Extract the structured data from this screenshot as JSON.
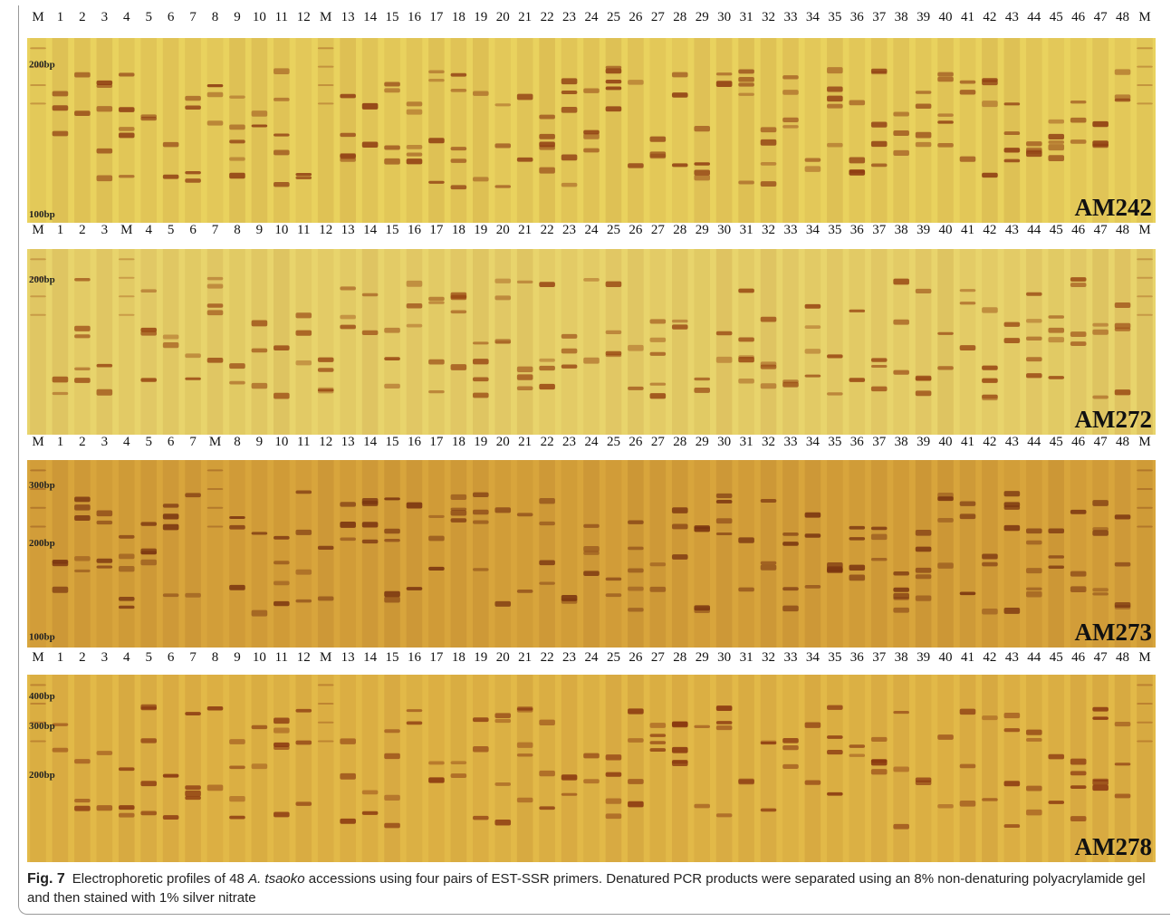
{
  "panels": [
    {
      "name": "AM242",
      "markers": [
        "200bp",
        "100bp"
      ],
      "lanes": [
        "M",
        "1",
        "2",
        "3",
        "4",
        "5",
        "6",
        "7",
        "8",
        "9",
        "10",
        "11",
        "12",
        "M",
        "13",
        "14",
        "15",
        "16",
        "17",
        "18",
        "19",
        "20",
        "21",
        "22",
        "23",
        "24",
        "25",
        "26",
        "27",
        "28",
        "29",
        "30",
        "31",
        "32",
        "33",
        "34",
        "35",
        "36",
        "37",
        "38",
        "39",
        "40",
        "41",
        "42",
        "43",
        "44",
        "45",
        "46",
        "47",
        "48",
        "M"
      ]
    },
    {
      "name": "AM272",
      "markers": [
        "200bp"
      ],
      "lanes": [
        "M",
        "1",
        "2",
        "3",
        "M",
        "4",
        "5",
        "6",
        "7",
        "8",
        "9",
        "10",
        "11",
        "12",
        "13",
        "14",
        "15",
        "16",
        "17",
        "18",
        "19",
        "20",
        "21",
        "22",
        "23",
        "24",
        "25",
        "26",
        "27",
        "28",
        "29",
        "30",
        "31",
        "32",
        "33",
        "34",
        "35",
        "36",
        "37",
        "38",
        "39",
        "40",
        "41",
        "42",
        "43",
        "44",
        "45",
        "46",
        "47",
        "48",
        "M"
      ]
    },
    {
      "name": "AM273",
      "markers": [
        "300bp",
        "200bp",
        "100bp"
      ],
      "lanes": [
        "M",
        "1",
        "2",
        "3",
        "4",
        "5",
        "6",
        "7",
        "M",
        "8",
        "9",
        "10",
        "11",
        "12",
        "13",
        "14",
        "15",
        "16",
        "17",
        "18",
        "19",
        "20",
        "21",
        "22",
        "23",
        "24",
        "25",
        "26",
        "27",
        "28",
        "29",
        "30",
        "31",
        "32",
        "33",
        "34",
        "35",
        "36",
        "37",
        "38",
        "39",
        "40",
        "41",
        "42",
        "43",
        "44",
        "45",
        "46",
        "47",
        "48",
        "M"
      ]
    },
    {
      "name": "AM278",
      "markers": [
        "400bp",
        "300bp",
        "200bp"
      ],
      "lanes": [
        "M",
        "1",
        "2",
        "3",
        "4",
        "5",
        "6",
        "7",
        "8",
        "9",
        "10",
        "11",
        "12",
        "M",
        "13",
        "14",
        "15",
        "16",
        "17",
        "18",
        "19",
        "20",
        "21",
        "22",
        "23",
        "24",
        "25",
        "26",
        "27",
        "28",
        "29",
        "30",
        "31",
        "32",
        "33",
        "34",
        "35",
        "36",
        "37",
        "38",
        "39",
        "40",
        "41",
        "42",
        "43",
        "44",
        "45",
        "46",
        "47",
        "48",
        "M"
      ]
    }
  ],
  "caption": {
    "label": "Fig. 7",
    "text1": "Electrophoretic profiles of 48",
    "species": "A. tsaoko",
    "text2": "accessions using four pairs of EST-SSR primers. Denatured PCR products were separated using an 8% non-denaturing polyacrylamide gel and then stained with 1% silver nitrate"
  }
}
